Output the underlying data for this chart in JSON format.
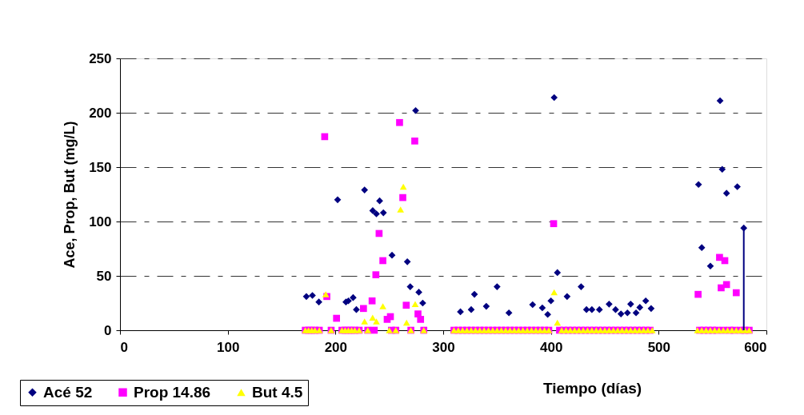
{
  "chart_data": {
    "type": "scatter",
    "xlabel": "Tiempo (días)",
    "ylabel": "Ace, Prop, But (mg/L)",
    "xlim": [
      0,
      600
    ],
    "xticks": [
      0,
      100,
      200,
      300,
      400,
      500,
      600
    ],
    "ylim": [
      0,
      250
    ],
    "yticks": [
      0,
      50,
      100,
      150,
      200,
      250
    ],
    "grid": "y",
    "legend": "bottom left",
    "series": [
      {
        "name": "Acé 52",
        "color": "#000080",
        "marker": "diamond",
        "x": [
          173,
          178.6,
          184.6,
          202,
          209.7,
          212,
          216.4,
          219.4,
          227,
          234.6,
          238,
          241,
          244.5,
          252.5,
          266.7,
          269.4,
          274.4,
          277.4,
          281,
          316,
          326,
          329,
          340,
          350,
          361,
          383,
          392,
          397,
          400,
          403,
          406,
          415,
          428,
          433,
          438,
          445,
          454,
          460,
          465,
          471,
          474,
          479,
          482.5,
          488,
          493,
          537,
          540,
          548,
          557,
          559,
          563,
          573,
          579
        ],
        "values": [
          31,
          32,
          26,
          120,
          26,
          27,
          30,
          19,
          129,
          110,
          107,
          119,
          108,
          69,
          63,
          40,
          202,
          35,
          25,
          17,
          19,
          33,
          22,
          40,
          16,
          23.5,
          20.6,
          14.5,
          27,
          214,
          53,
          31,
          40,
          19,
          19,
          19,
          24,
          19,
          15,
          16,
          24,
          16,
          21,
          27,
          20,
          134,
          76,
          59,
          211,
          148,
          126,
          132,
          94
        ],
        "errors": [
          null,
          null,
          null,
          null,
          null,
          null,
          null,
          null,
          null,
          null,
          null,
          null,
          null,
          null,
          null,
          null,
          null,
          null,
          null,
          null,
          null,
          null,
          null,
          null,
          null,
          null,
          null,
          null,
          null,
          null,
          null,
          null,
          null,
          null,
          null,
          null,
          null,
          null,
          null,
          null,
          null,
          null,
          null,
          null,
          null,
          null,
          null,
          null,
          null,
          null,
          null,
          null,
          [
            0,
            94
          ]
        ]
      },
      {
        "name": "Prop 14.86",
        "color": "#ff00ff",
        "marker": "square",
        "x": [
          190,
          192,
          201,
          226,
          234,
          237.5,
          240.5,
          244,
          248,
          251,
          259.5,
          262.5,
          265.7,
          273.6,
          276.6,
          279,
          402.5,
          536.6,
          556.5,
          558,
          561.4,
          563,
          572,
          172,
          175,
          178,
          181,
          185,
          196,
          206,
          209,
          212,
          215,
          218,
          222,
          230,
          236,
          252,
          256,
          270,
          282,
          310,
          314,
          318,
          322,
          326,
          330,
          334,
          338,
          342,
          346,
          350,
          354,
          358,
          362,
          366,
          370,
          374,
          378,
          382,
          386,
          390,
          394,
          398,
          408,
          412,
          416,
          420,
          424,
          428,
          432,
          436,
          440,
          444,
          448,
          452,
          456,
          460,
          464,
          468,
          472,
          476,
          480,
          484,
          488,
          492,
          538,
          542,
          546,
          550,
          554,
          560,
          566,
          570,
          576,
          580,
          584
        ],
        "values": [
          178,
          31,
          11,
          20,
          27,
          51,
          89,
          64,
          10,
          12.5,
          191,
          122,
          23,
          174,
          15,
          10,
          98,
          33,
          67,
          39,
          64,
          42,
          34.5,
          0,
          0,
          0,
          0,
          0,
          0,
          0,
          0,
          0,
          0,
          0,
          0,
          0,
          0,
          0,
          0,
          0,
          0,
          0,
          0,
          0,
          0,
          0,
          0,
          0,
          0,
          0,
          0,
          0,
          0,
          0,
          0,
          0,
          0,
          0,
          0,
          0,
          0,
          0,
          0,
          0,
          0,
          0,
          0,
          0,
          0,
          0,
          0,
          0,
          0,
          0,
          0,
          0,
          0,
          0,
          0,
          0,
          0,
          0,
          0,
          0,
          0,
          0,
          0,
          0,
          0,
          0,
          0,
          0,
          0,
          0,
          0,
          0,
          0
        ]
      },
      {
        "name": "But 4.5",
        "color": "#ffff00",
        "marker": "triangle",
        "x": [
          191,
          227,
          234.5,
          238,
          244,
          260.4,
          263,
          266,
          274,
          403,
          406,
          172,
          175,
          178,
          181,
          185,
          196,
          206,
          209,
          212,
          215,
          218,
          222,
          230,
          250,
          256,
          270,
          282,
          310,
          314,
          318,
          322,
          326,
          330,
          334,
          338,
          342,
          346,
          350,
          354,
          358,
          362,
          366,
          370,
          374,
          378,
          382,
          386,
          390,
          394,
          398,
          410,
          414,
          418,
          422,
          426,
          430,
          434,
          438,
          442,
          446,
          450,
          454,
          458,
          462,
          466,
          470,
          474,
          478,
          482,
          486,
          490,
          494,
          536,
          540,
          544,
          548,
          552,
          556,
          560,
          564,
          568,
          572,
          576,
          580,
          584
        ],
        "values": [
          33,
          8,
          11.5,
          8,
          22,
          111,
          132,
          7,
          24,
          35,
          7,
          0,
          0,
          0,
          0,
          0,
          0,
          0,
          0,
          0,
          0,
          0,
          0,
          0,
          0,
          0,
          0,
          0,
          0,
          0,
          0,
          0,
          0,
          0,
          0,
          0,
          0,
          0,
          0,
          0,
          0,
          0,
          0,
          0,
          0,
          0,
          0,
          0,
          0,
          0,
          0,
          0,
          0,
          0,
          0,
          0,
          0,
          0,
          0,
          0,
          0,
          0,
          0,
          0,
          0,
          0,
          0,
          0,
          0,
          0,
          0,
          0,
          0,
          0,
          0,
          0,
          0,
          0,
          0,
          0,
          0,
          0,
          0,
          0,
          0,
          0
        ]
      }
    ]
  }
}
